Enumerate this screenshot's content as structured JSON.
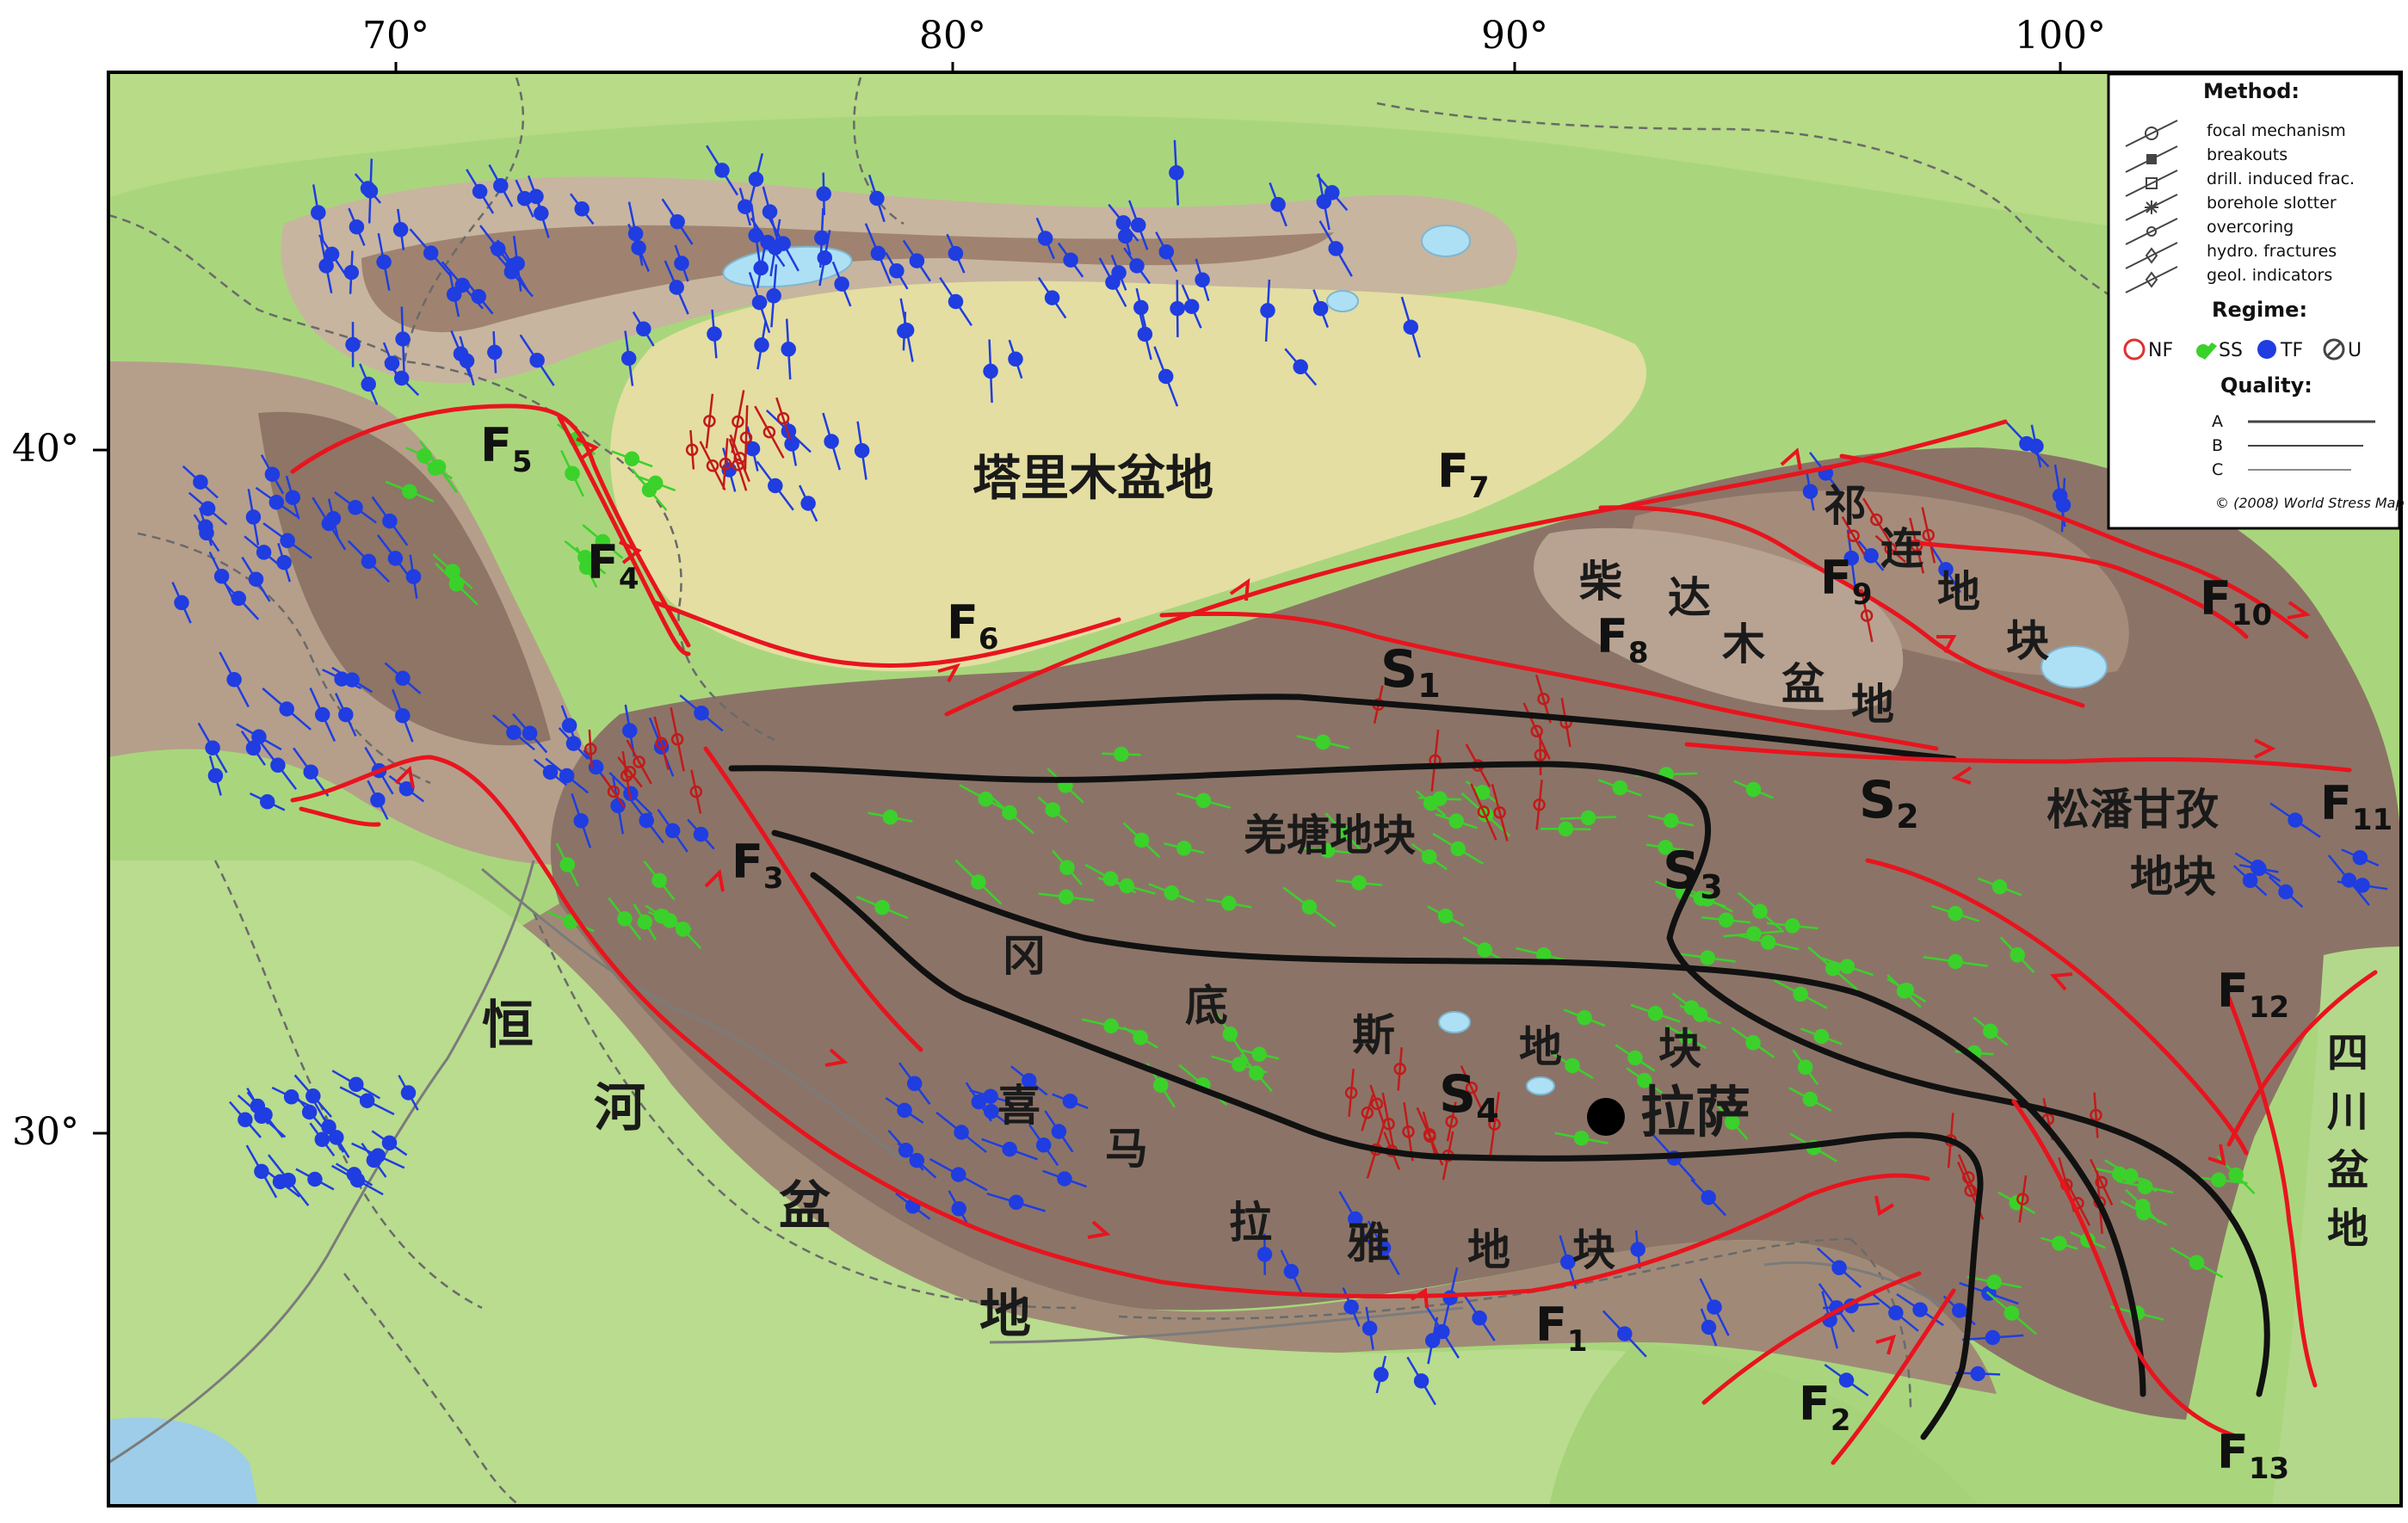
{
  "axes": {
    "x_ticks": [
      "70°",
      "80°",
      "90°",
      "100°"
    ],
    "y_ticks": [
      "40°",
      "30°"
    ]
  },
  "legend": {
    "method_title": "Method:",
    "methods": [
      "focal mechanism",
      "breakouts",
      "drill. induced frac.",
      "borehole slotter",
      "overcoring",
      "hydro. fractures",
      "geol. indicators"
    ],
    "regime_title": "Regime:",
    "regimes": [
      {
        "code": "NF",
        "color": "#e03030"
      },
      {
        "code": "SS",
        "color": "#3bd12b"
      },
      {
        "code": "TF",
        "color": "#1f3de0"
      },
      {
        "code": "U",
        "color": "#444444"
      }
    ],
    "quality_title": "Quality:",
    "qualities": [
      "A",
      "B",
      "C"
    ],
    "credit": "© (2008) World Stress Map"
  },
  "regions": {
    "tarim": "塔里木盆地",
    "qiangtang": "羌塘地块",
    "lhasa_city": "拉萨",
    "songpan": [
      "松潘甘孜",
      "地块"
    ],
    "qaidam": [
      "柴",
      "达",
      "木",
      "盆",
      "地"
    ],
    "qilian": [
      "祁",
      "连",
      "地",
      "块"
    ],
    "gangdese": [
      "冈",
      "底",
      "斯",
      "地",
      "块"
    ],
    "himalaya": [
      "喜",
      "马",
      "拉",
      "雅",
      "地",
      "块"
    ],
    "ganges": [
      "恒",
      "河",
      "盆",
      "地"
    ],
    "sichuan": [
      "四",
      "川",
      "盆",
      "地"
    ]
  },
  "faults": [
    {
      "letter": "F",
      "sub": "1"
    },
    {
      "letter": "F",
      "sub": "2"
    },
    {
      "letter": "F",
      "sub": "3"
    },
    {
      "letter": "F",
      "sub": "4"
    },
    {
      "letter": "F",
      "sub": "5"
    },
    {
      "letter": "F",
      "sub": "6"
    },
    {
      "letter": "F",
      "sub": "7"
    },
    {
      "letter": "F",
      "sub": "8"
    },
    {
      "letter": "F",
      "sub": "9"
    },
    {
      "letter": "F",
      "sub": "10"
    },
    {
      "letter": "F",
      "sub": "11"
    },
    {
      "letter": "F",
      "sub": "12"
    },
    {
      "letter": "F",
      "sub": "13"
    }
  ],
  "sutures": [
    {
      "letter": "S",
      "sub": "1"
    },
    {
      "letter": "S",
      "sub": "2"
    },
    {
      "letter": "S",
      "sub": "3"
    },
    {
      "letter": "S",
      "sub": "4"
    }
  ],
  "colors": {
    "fault_red": "#e8141e",
    "suture_black": "#111111",
    "plain_green": "#a8d87a",
    "basin_tan": "#e2dca0",
    "plateau_brown": "#8a7468",
    "mountain_light": "#c9b9a6",
    "lake_blue": "#aee0f5"
  }
}
